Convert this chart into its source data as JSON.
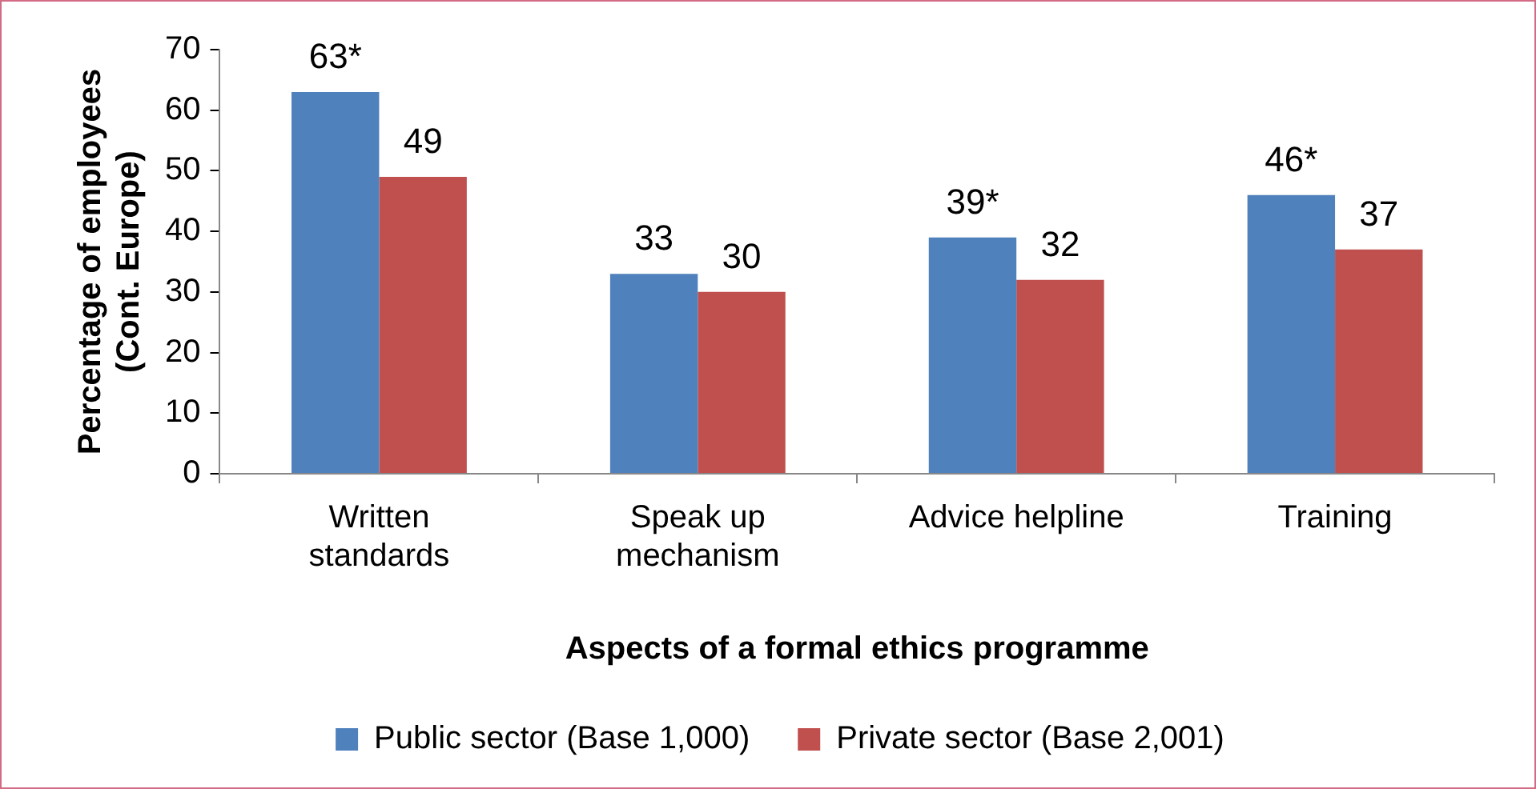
{
  "chart_data": {
    "type": "bar",
    "xlabel": "Aspects of a formal ethics programme",
    "ylabel": "Percentage of employees\n(Cont. Europe)",
    "categories": [
      "Written\nstandards",
      "Speak up\nmechanism",
      "Advice helpline",
      "Training"
    ],
    "series": [
      {
        "name": "Public sector (Base 1,000)",
        "color": "#4f81bd",
        "values": [
          63,
          33,
          39,
          46
        ],
        "value_labels": [
          "63*",
          "33",
          "39*",
          "46*"
        ]
      },
      {
        "name": "Private sector (Base 2,001)",
        "color": "#c0504d",
        "values": [
          49,
          30,
          32,
          37
        ],
        "value_labels": [
          "49",
          "30",
          "32",
          "37"
        ]
      }
    ],
    "ylim": [
      0,
      70
    ],
    "yticks": [
      0,
      10,
      20,
      30,
      40,
      50,
      60,
      70
    ],
    "grid": false,
    "legend": "bottom"
  }
}
